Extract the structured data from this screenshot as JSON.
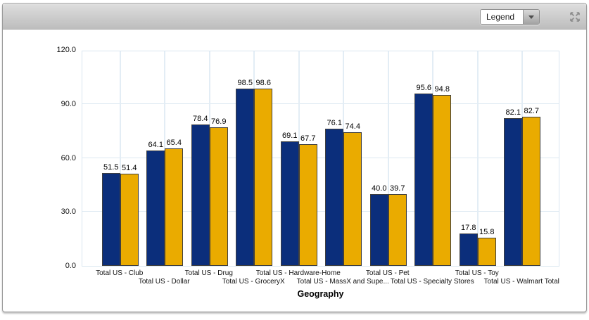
{
  "toolbar": {
    "legend_dropdown": {
      "value": "Legend"
    }
  },
  "colors": {
    "series1": "#0b2e7b",
    "series2": "#eaab00",
    "bar_border": "#3f3f3f",
    "grid": "#dde9f2",
    "toolbar_icon": "#8c8c8c"
  },
  "chart_data": {
    "type": "bar",
    "title": "",
    "xlabel": "Geography",
    "ylabel": "",
    "ylim": [
      0,
      120
    ],
    "yticks": [
      "0.0",
      "30.0",
      "60.0",
      "90.0",
      "120.0"
    ],
    "grid": true,
    "legend_position": "collapsed-dropdown",
    "categories": [
      "Total US - Club",
      "Total US - Dollar",
      "Total US - Drug",
      "Total US - GroceryX",
      "Total US - Hardware-Home",
      "Total US - MassX and Supe...",
      "Total US - Pet",
      "Total US - Specialty Stores",
      "Total US - Toy",
      "Total US - Walmart Total"
    ],
    "series": [
      {
        "color": "#0b2e7b",
        "values": [
          51.5,
          64.1,
          78.4,
          98.5,
          69.1,
          76.1,
          40.0,
          95.6,
          17.8,
          82.1
        ]
      },
      {
        "color": "#eaab00",
        "values": [
          51.4,
          65.4,
          76.9,
          98.6,
          67.7,
          74.4,
          39.7,
          94.8,
          15.8,
          82.7
        ]
      }
    ],
    "value_labels": true
  }
}
